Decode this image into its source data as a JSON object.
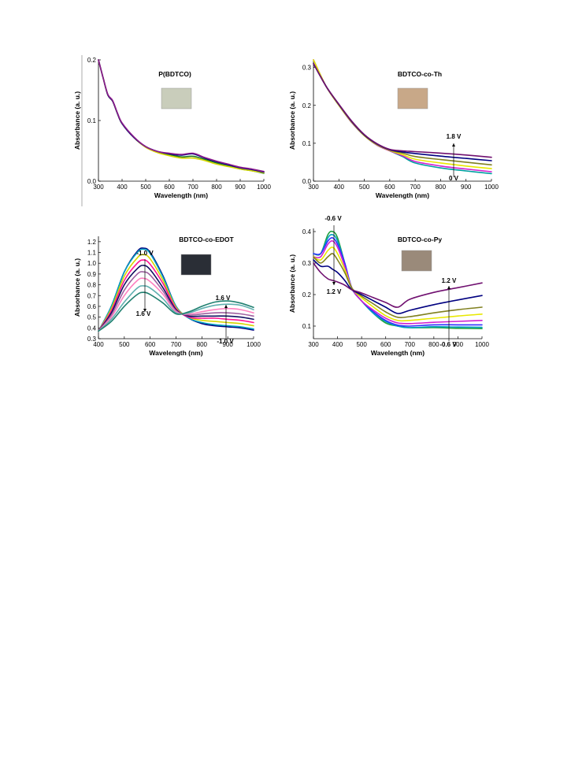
{
  "chart_data": [
    {
      "type": "line",
      "title": "P(BDTCO)",
      "xlabel": "Wavelength (nm)",
      "ylabel": "Absorbance (a. u.)",
      "xlim": [
        300,
        1000
      ],
      "ylim": [
        0.0,
        0.2
      ],
      "xticks": [
        "300",
        "400",
        "500",
        "600",
        "700",
        "800",
        "900",
        "1000"
      ],
      "yticks": [
        "0.0",
        "0.1",
        "0.2"
      ],
      "annotations": [],
      "inset_color": "#c9cdbb",
      "series": [
        {
          "color": "#1f7a1f",
          "x": [
            300,
            320,
            340,
            360,
            380,
            400,
            450,
            500,
            550,
            600,
            650,
            700,
            750,
            800,
            850,
            900,
            950,
            1000
          ],
          "y": [
            0.2,
            0.17,
            0.142,
            0.132,
            0.112,
            0.095,
            0.072,
            0.056,
            0.048,
            0.044,
            0.04,
            0.041,
            0.036,
            0.03,
            0.025,
            0.02,
            0.017,
            0.013
          ]
        },
        {
          "color": "#d6d600",
          "x": [
            300,
            320,
            340,
            360,
            380,
            400,
            450,
            500,
            550,
            600,
            650,
            700,
            750,
            800,
            850,
            900,
            950,
            1000
          ],
          "y": [
            0.2,
            0.17,
            0.142,
            0.132,
            0.112,
            0.095,
            0.072,
            0.056,
            0.047,
            0.042,
            0.038,
            0.038,
            0.034,
            0.028,
            0.024,
            0.02,
            0.017,
            0.014
          ]
        },
        {
          "color": "#000080",
          "x": [
            300,
            320,
            340,
            360,
            380,
            400,
            450,
            500,
            550,
            600,
            650,
            700,
            750,
            800,
            850,
            900,
            950,
            1000
          ],
          "y": [
            0.2,
            0.17,
            0.142,
            0.132,
            0.112,
            0.095,
            0.072,
            0.057,
            0.049,
            0.045,
            0.043,
            0.045,
            0.038,
            0.032,
            0.027,
            0.022,
            0.019,
            0.015
          ]
        },
        {
          "color": "#8b1a8b",
          "x": [
            300,
            320,
            340,
            360,
            380,
            400,
            450,
            500,
            550,
            600,
            650,
            700,
            750,
            800,
            850,
            900,
            950,
            1000
          ],
          "y": [
            0.2,
            0.17,
            0.143,
            0.133,
            0.113,
            0.096,
            0.073,
            0.057,
            0.049,
            0.046,
            0.044,
            0.046,
            0.039,
            0.033,
            0.028,
            0.023,
            0.02,
            0.016
          ]
        }
      ]
    },
    {
      "type": "line",
      "title": "BDTCO-co-Th",
      "xlabel": "Wavelength (nm)",
      "ylabel": "Absorbance (a. u.)",
      "xlim": [
        300,
        1000
      ],
      "ylim": [
        0.0,
        0.32
      ],
      "xticks": [
        "300",
        "400",
        "500",
        "600",
        "700",
        "800",
        "900",
        "1000"
      ],
      "yticks": [
        "0.0",
        "0.1",
        "0.2",
        "0.3"
      ],
      "annotations": [
        "1.8 V",
        "0 V"
      ],
      "inset_color": "#c8a888",
      "series": [
        {
          "color": "#00a0a0",
          "x": [
            300,
            350,
            400,
            450,
            500,
            550,
            600,
            650,
            700,
            800,
            900,
            1000
          ],
          "y": [
            0.32,
            0.25,
            0.2,
            0.155,
            0.12,
            0.095,
            0.08,
            0.065,
            0.048,
            0.035,
            0.027,
            0.02
          ]
        },
        {
          "color": "#d020d0",
          "x": [
            300,
            350,
            400,
            450,
            500,
            550,
            600,
            650,
            700,
            800,
            900,
            1000
          ],
          "y": [
            0.32,
            0.25,
            0.2,
            0.155,
            0.12,
            0.095,
            0.08,
            0.067,
            0.052,
            0.04,
            0.032,
            0.025
          ]
        },
        {
          "color": "#e8e800",
          "x": [
            300,
            350,
            400,
            450,
            500,
            550,
            600,
            650,
            700,
            800,
            900,
            1000
          ],
          "y": [
            0.32,
            0.25,
            0.2,
            0.156,
            0.12,
            0.096,
            0.081,
            0.07,
            0.058,
            0.048,
            0.04,
            0.033
          ]
        },
        {
          "color": "#808020",
          "x": [
            300,
            350,
            400,
            450,
            500,
            550,
            600,
            650,
            700,
            800,
            900,
            1000
          ],
          "y": [
            0.31,
            0.25,
            0.202,
            0.157,
            0.121,
            0.097,
            0.082,
            0.074,
            0.065,
            0.057,
            0.05,
            0.043
          ]
        },
        {
          "color": "#000080",
          "x": [
            300,
            350,
            400,
            450,
            500,
            550,
            600,
            650,
            700,
            800,
            900,
            1000
          ],
          "y": [
            0.31,
            0.25,
            0.202,
            0.158,
            0.122,
            0.098,
            0.083,
            0.077,
            0.073,
            0.066,
            0.06,
            0.054
          ]
        },
        {
          "color": "#701070",
          "x": [
            300,
            350,
            400,
            450,
            500,
            550,
            600,
            650,
            700,
            800,
            900,
            1000
          ],
          "y": [
            0.31,
            0.25,
            0.203,
            0.159,
            0.123,
            0.099,
            0.084,
            0.08,
            0.078,
            0.074,
            0.069,
            0.063
          ]
        }
      ]
    },
    {
      "type": "line",
      "title": "BDTCO-co-EDOT",
      "xlabel": "Wavelength (nm)",
      "ylabel": "Absorbance (a. u.)",
      "xlim": [
        400,
        1000
      ],
      "ylim": [
        0.3,
        1.25
      ],
      "xticks": [
        "400",
        "500",
        "600",
        "700",
        "800",
        "900",
        "1000"
      ],
      "yticks": [
        "0.3",
        "0.4",
        "0.5",
        "0.6",
        "0.7",
        "0.8",
        "0.9",
        "1.0",
        "1.1",
        "1.2"
      ],
      "annotations": [
        "-1.0 V",
        "1.6 V",
        "1.6 V",
        "-1.0 V"
      ],
      "inset_color": "#2a2e36",
      "series": [
        {
          "color": "#000080",
          "x": [
            400,
            450,
            500,
            550,
            575,
            600,
            650,
            700,
            750,
            800,
            850,
            900,
            950,
            1000
          ],
          "y": [
            0.37,
            0.6,
            0.92,
            1.11,
            1.14,
            1.1,
            0.88,
            0.6,
            0.49,
            0.44,
            0.42,
            0.41,
            0.4,
            0.38
          ]
        },
        {
          "color": "#00a0c0",
          "x": [
            400,
            450,
            500,
            550,
            575,
            600,
            650,
            700,
            750,
            800,
            850,
            900,
            950,
            1000
          ],
          "y": [
            0.37,
            0.6,
            0.92,
            1.1,
            1.13,
            1.09,
            0.87,
            0.6,
            0.49,
            0.45,
            0.43,
            0.42,
            0.41,
            0.39
          ]
        },
        {
          "color": "#d6d600",
          "x": [
            400,
            450,
            500,
            550,
            575,
            600,
            650,
            700,
            750,
            800,
            850,
            900,
            950,
            1000
          ],
          "y": [
            0.37,
            0.58,
            0.88,
            1.05,
            1.08,
            1.04,
            0.84,
            0.59,
            0.5,
            0.47,
            0.46,
            0.45,
            0.44,
            0.42
          ]
        },
        {
          "color": "#ff1493",
          "x": [
            400,
            450,
            500,
            550,
            575,
            600,
            650,
            700,
            750,
            800,
            850,
            900,
            950,
            1000
          ],
          "y": [
            0.37,
            0.56,
            0.84,
            1.0,
            1.03,
            0.99,
            0.81,
            0.58,
            0.5,
            0.49,
            0.49,
            0.48,
            0.47,
            0.45
          ]
        },
        {
          "color": "#101060",
          "x": [
            400,
            450,
            500,
            550,
            575,
            600,
            650,
            700,
            750,
            800,
            850,
            900,
            950,
            1000
          ],
          "y": [
            0.37,
            0.54,
            0.8,
            0.95,
            0.98,
            0.94,
            0.77,
            0.57,
            0.51,
            0.51,
            0.51,
            0.51,
            0.5,
            0.48
          ]
        },
        {
          "color": "#a060a0",
          "x": [
            400,
            450,
            500,
            550,
            575,
            600,
            650,
            700,
            750,
            800,
            850,
            900,
            950,
            1000
          ],
          "y": [
            0.37,
            0.52,
            0.75,
            0.9,
            0.92,
            0.89,
            0.74,
            0.56,
            0.52,
            0.53,
            0.54,
            0.54,
            0.53,
            0.51
          ]
        },
        {
          "color": "#ff80c0",
          "x": [
            400,
            450,
            500,
            550,
            575,
            600,
            650,
            700,
            750,
            800,
            850,
            900,
            950,
            1000
          ],
          "y": [
            0.37,
            0.5,
            0.7,
            0.84,
            0.86,
            0.83,
            0.71,
            0.55,
            0.53,
            0.55,
            0.57,
            0.58,
            0.57,
            0.54
          ]
        },
        {
          "color": "#60b0b0",
          "x": [
            400,
            450,
            500,
            550,
            575,
            600,
            650,
            700,
            750,
            800,
            850,
            900,
            950,
            1000
          ],
          "y": [
            0.37,
            0.48,
            0.64,
            0.77,
            0.79,
            0.77,
            0.67,
            0.54,
            0.54,
            0.58,
            0.61,
            0.62,
            0.61,
            0.57
          ]
        },
        {
          "color": "#208070",
          "x": [
            400,
            450,
            500,
            550,
            575,
            600,
            650,
            700,
            750,
            800,
            850,
            900,
            950,
            1000
          ],
          "y": [
            0.37,
            0.46,
            0.6,
            0.71,
            0.73,
            0.71,
            0.63,
            0.53,
            0.55,
            0.6,
            0.64,
            0.65,
            0.63,
            0.59
          ]
        }
      ]
    },
    {
      "type": "line",
      "title": "BDTCO-co-Py",
      "xlabel": "Wavelength (nm)",
      "ylabel": "Absorbance (a. u.)",
      "xlim": [
        300,
        1000
      ],
      "ylim": [
        0.06,
        0.41
      ],
      "xticks": [
        "300",
        "400",
        "500",
        "600",
        "700",
        "800",
        "900",
        "1000"
      ],
      "yticks": [
        "0.1",
        "0.2",
        "0.3",
        "0.4"
      ],
      "annotations": [
        "-0.6 V",
        "1.2 V",
        "1.2 V",
        "-0.6 V"
      ],
      "inset_color": "#9a8a7a",
      "series": [
        {
          "color": "#20a040",
          "x": [
            300,
            330,
            360,
            380,
            400,
            430,
            460,
            500,
            550,
            600,
            650,
            700,
            800,
            900,
            1000
          ],
          "y": [
            0.33,
            0.33,
            0.39,
            0.4,
            0.38,
            0.3,
            0.22,
            0.18,
            0.14,
            0.11,
            0.1,
            0.095,
            0.095,
            0.093,
            0.092
          ]
        },
        {
          "color": "#00a0c0",
          "x": [
            300,
            330,
            360,
            380,
            400,
            430,
            460,
            500,
            550,
            600,
            650,
            700,
            800,
            900,
            1000
          ],
          "y": [
            0.33,
            0.33,
            0.38,
            0.39,
            0.37,
            0.3,
            0.22,
            0.18,
            0.14,
            0.115,
            0.1,
            0.095,
            0.098,
            0.097,
            0.096
          ]
        },
        {
          "color": "#3030ff",
          "x": [
            300,
            330,
            360,
            380,
            400,
            430,
            460,
            500,
            550,
            600,
            650,
            700,
            800,
            900,
            1000
          ],
          "y": [
            0.33,
            0.33,
            0.37,
            0.38,
            0.36,
            0.3,
            0.22,
            0.18,
            0.145,
            0.118,
            0.103,
            0.1,
            0.104,
            0.104,
            0.104
          ]
        },
        {
          "color": "#d020d0",
          "x": [
            300,
            330,
            360,
            380,
            400,
            430,
            460,
            500,
            550,
            600,
            650,
            700,
            800,
            900,
            1000
          ],
          "y": [
            0.32,
            0.32,
            0.36,
            0.37,
            0.35,
            0.29,
            0.22,
            0.18,
            0.15,
            0.125,
            0.11,
            0.108,
            0.112,
            0.115,
            0.118
          ]
        },
        {
          "color": "#e8e800",
          "x": [
            300,
            330,
            360,
            380,
            400,
            430,
            460,
            500,
            550,
            600,
            650,
            700,
            800,
            900,
            1000
          ],
          "y": [
            0.32,
            0.31,
            0.34,
            0.35,
            0.33,
            0.28,
            0.22,
            0.19,
            0.16,
            0.133,
            0.118,
            0.118,
            0.125,
            0.132,
            0.138
          ]
        },
        {
          "color": "#808020",
          "x": [
            300,
            330,
            360,
            380,
            400,
            430,
            460,
            500,
            550,
            600,
            650,
            700,
            800,
            900,
            1000
          ],
          "y": [
            0.32,
            0.3,
            0.32,
            0.33,
            0.31,
            0.27,
            0.22,
            0.195,
            0.17,
            0.145,
            0.128,
            0.13,
            0.142,
            0.152,
            0.16
          ]
        },
        {
          "color": "#000080",
          "x": [
            300,
            330,
            360,
            380,
            400,
            430,
            460,
            500,
            550,
            600,
            650,
            700,
            800,
            900,
            1000
          ],
          "y": [
            0.31,
            0.29,
            0.29,
            0.28,
            0.27,
            0.245,
            0.215,
            0.2,
            0.18,
            0.16,
            0.14,
            0.15,
            0.168,
            0.183,
            0.197
          ]
        },
        {
          "color": "#701070",
          "x": [
            300,
            330,
            360,
            380,
            400,
            430,
            460,
            500,
            550,
            600,
            650,
            700,
            800,
            900,
            1000
          ],
          "y": [
            0.3,
            0.27,
            0.25,
            0.245,
            0.24,
            0.23,
            0.215,
            0.205,
            0.19,
            0.175,
            0.16,
            0.185,
            0.207,
            0.222,
            0.237
          ]
        }
      ]
    }
  ]
}
